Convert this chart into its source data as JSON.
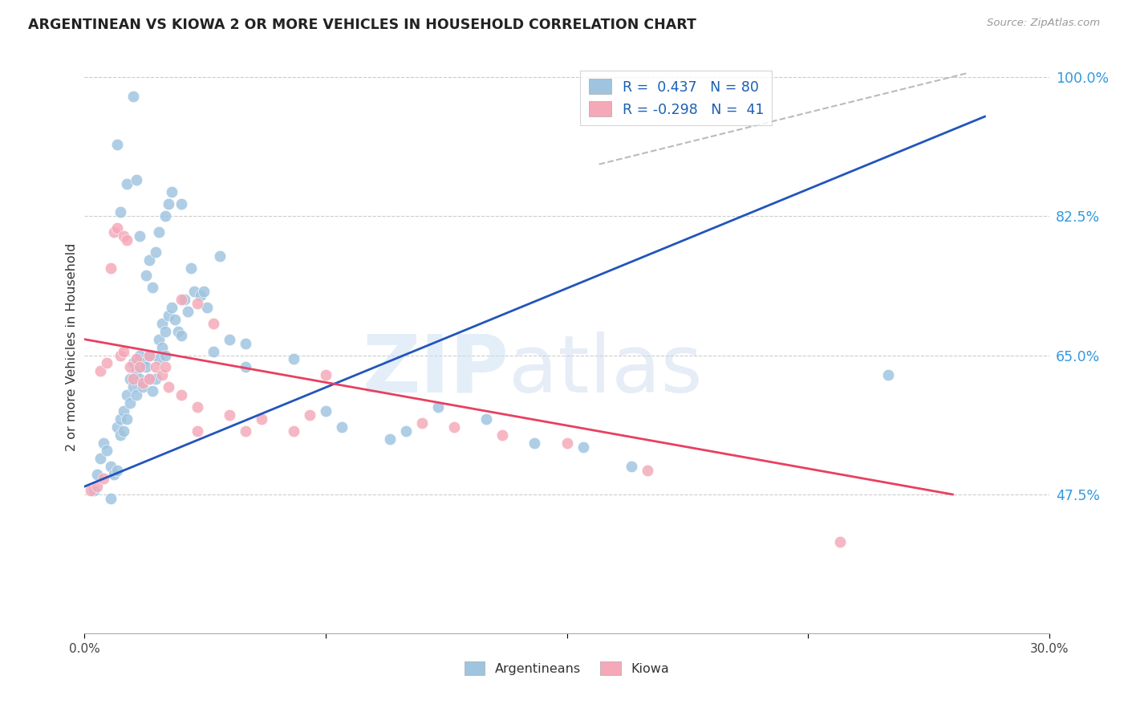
{
  "title": "ARGENTINEAN VS KIOWA 2 OR MORE VEHICLES IN HOUSEHOLD CORRELATION CHART",
  "source": "Source: ZipAtlas.com",
  "ylabel": "2 or more Vehicles in Household",
  "xmin": 0.0,
  "xmax": 30.0,
  "ymin": 30.0,
  "ymax": 102.0,
  "yticks": [
    47.5,
    65.0,
    82.5,
    100.0
  ],
  "ytick_labels": [
    "47.5%",
    "65.0%",
    "82.5%",
    "100.0%"
  ],
  "xticks": [
    0.0,
    7.5,
    15.0,
    22.5,
    30.0
  ],
  "xtick_labels": [
    "0.0%",
    "",
    "",
    "",
    "30.0%"
  ],
  "blue_color": "#9ec4e0",
  "pink_color": "#f4a8b8",
  "blue_line_color": "#2255bb",
  "pink_line_color": "#e84060",
  "dash_line_color": "#bbbbbb",
  "legend_label_blue": "Argentineans",
  "legend_label_pink": "Kiowa",
  "watermark_zip": "ZIP",
  "watermark_atlas": "atlas",
  "blue_scatter_x": [
    0.3,
    0.4,
    0.5,
    0.6,
    0.7,
    0.8,
    0.8,
    0.9,
    1.0,
    1.0,
    1.1,
    1.1,
    1.2,
    1.2,
    1.3,
    1.3,
    1.4,
    1.4,
    1.5,
    1.5,
    1.6,
    1.6,
    1.7,
    1.7,
    1.8,
    1.8,
    1.9,
    2.0,
    2.0,
    2.1,
    2.2,
    2.3,
    2.3,
    2.4,
    2.4,
    2.5,
    2.5,
    2.6,
    2.7,
    2.8,
    2.9,
    3.0,
    3.1,
    3.2,
    3.4,
    3.6,
    3.8,
    4.0,
    4.5,
    5.0,
    1.0,
    1.1,
    1.3,
    1.5,
    1.6,
    1.7,
    1.9,
    2.0,
    2.1,
    2.2,
    2.3,
    2.5,
    2.6,
    2.7,
    3.0,
    3.3,
    3.7,
    4.2,
    5.0,
    6.5,
    7.5,
    8.0,
    9.5,
    10.0,
    11.0,
    12.5,
    14.0,
    15.5,
    17.0,
    25.0
  ],
  "blue_scatter_y": [
    48.0,
    50.0,
    52.0,
    54.0,
    53.0,
    51.0,
    47.0,
    50.0,
    50.5,
    56.0,
    55.0,
    57.0,
    55.5,
    58.0,
    57.0,
    60.0,
    59.0,
    62.0,
    61.0,
    64.0,
    63.0,
    60.0,
    62.0,
    65.0,
    64.0,
    61.0,
    63.5,
    65.0,
    62.0,
    60.5,
    62.0,
    64.5,
    67.0,
    66.0,
    69.0,
    68.0,
    65.0,
    70.0,
    71.0,
    69.5,
    68.0,
    67.5,
    72.0,
    70.5,
    73.0,
    72.5,
    71.0,
    65.5,
    67.0,
    66.5,
    91.5,
    83.0,
    86.5,
    97.5,
    87.0,
    80.0,
    75.0,
    77.0,
    73.5,
    78.0,
    80.5,
    82.5,
    84.0,
    85.5,
    84.0,
    76.0,
    73.0,
    77.5,
    63.5,
    64.5,
    58.0,
    56.0,
    54.5,
    55.5,
    58.5,
    57.0,
    54.0,
    53.5,
    51.0,
    62.5
  ],
  "pink_scatter_x": [
    0.2,
    0.4,
    0.5,
    0.6,
    0.7,
    0.8,
    0.9,
    1.0,
    1.1,
    1.2,
    1.3,
    1.4,
    1.5,
    1.6,
    1.7,
    1.8,
    2.0,
    2.2,
    2.4,
    2.6,
    3.0,
    3.5,
    4.0,
    5.0,
    6.5,
    7.5,
    3.0,
    3.5,
    4.5,
    10.5,
    11.5,
    13.0,
    15.0,
    17.5,
    23.5,
    1.2,
    2.0,
    2.5,
    3.5,
    5.5,
    7.0
  ],
  "pink_scatter_y": [
    48.0,
    48.5,
    63.0,
    49.5,
    64.0,
    76.0,
    80.5,
    81.0,
    65.0,
    80.0,
    79.5,
    63.5,
    62.0,
    64.5,
    63.5,
    61.5,
    62.0,
    63.5,
    62.5,
    61.0,
    72.0,
    71.5,
    69.0,
    55.5,
    55.5,
    62.5,
    60.0,
    58.5,
    57.5,
    56.5,
    56.0,
    55.0,
    54.0,
    50.5,
    41.5,
    65.5,
    65.0,
    63.5,
    55.5,
    57.0,
    57.5
  ],
  "blue_line_x": [
    0.0,
    28.0
  ],
  "blue_line_y": [
    48.5,
    95.0
  ],
  "pink_line_x": [
    0.0,
    27.0
  ],
  "pink_line_y": [
    67.0,
    47.5
  ],
  "dash_line_x": [
    16.0,
    27.5
  ],
  "dash_line_y": [
    89.0,
    100.5
  ]
}
